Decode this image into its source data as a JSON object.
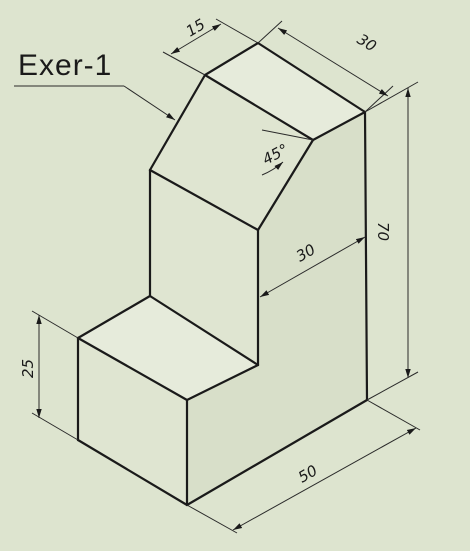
{
  "title": "Exer-1",
  "dimensions": {
    "top_width": "15",
    "depth": "30",
    "angle": "45°",
    "height": "70",
    "inner_depth": "30",
    "base_height": "25",
    "length": "50"
  },
  "colors": {
    "background": "#dde4cf",
    "line": "#1a1a1a"
  }
}
